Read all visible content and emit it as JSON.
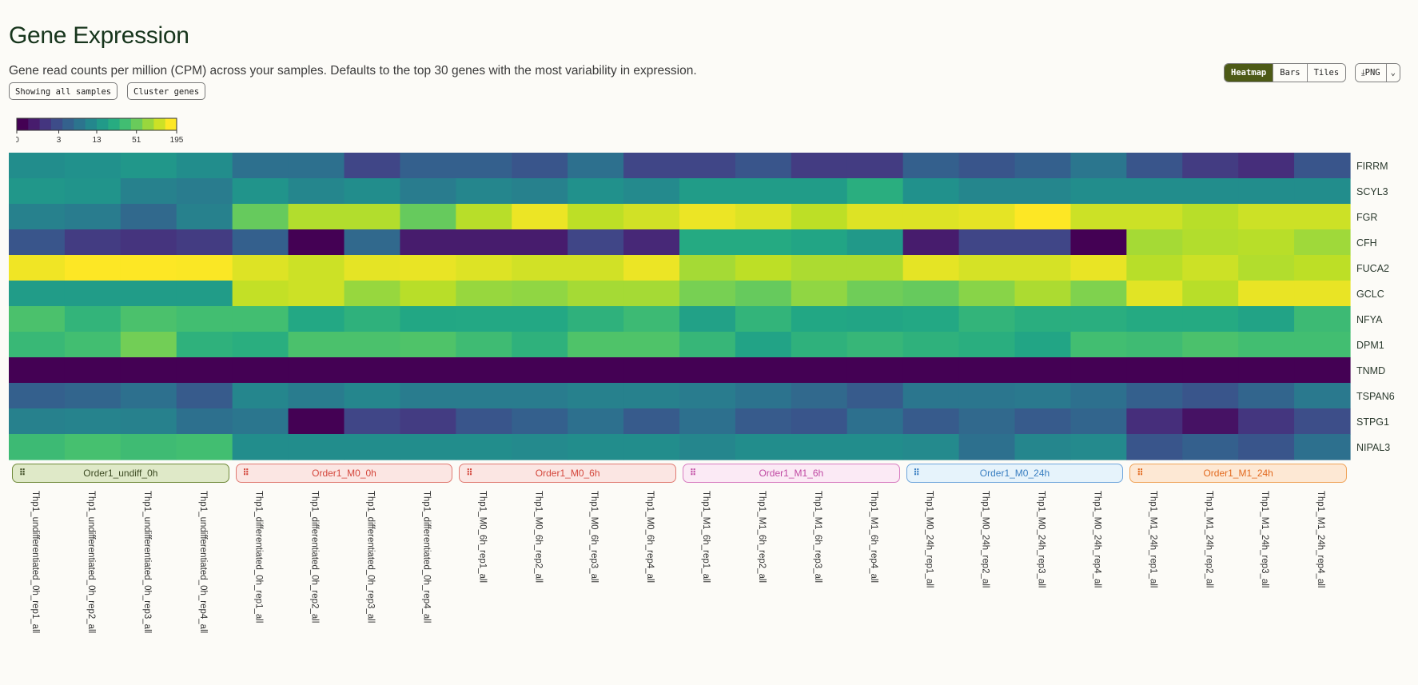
{
  "header": {
    "title": "Gene Expression",
    "description": "Gene read counts per million (CPM) across your samples. Defaults to the top 30 genes with the most variability in expression."
  },
  "controls": {
    "samples_button": "Showing all samples",
    "cluster_button": "Cluster genes",
    "view_modes": [
      {
        "label": "Heatmap",
        "active": true
      },
      {
        "label": "Bars",
        "active": false
      },
      {
        "label": "Tiles",
        "active": false
      }
    ],
    "download": {
      "icon": "download-icon",
      "label": "PNG",
      "menu_icon": "chevron-down-icon"
    }
  },
  "chart_data": {
    "type": "heatmap",
    "title": "Gene Expression",
    "value_label": "CPM",
    "colormap": "viridis",
    "color_scale": {
      "ticks": [
        0,
        3,
        13,
        51,
        195
      ],
      "min": 0,
      "max": 195,
      "scale": "log"
    },
    "genes": [
      "FIRRM",
      "SCYL3",
      "FGR",
      "CFH",
      "FUCA2",
      "GCLC",
      "NFYA",
      "DPM1",
      "TNMD",
      "TSPAN6",
      "STPG1",
      "NIPAL3"
    ],
    "samples": [
      "Thp1_undifferentiated_0h_rep1_all",
      "Thp1_undifferentiated_0h_rep2_all",
      "Thp1_undifferentiated_0h_rep3_all",
      "Thp1_undifferentiated_0h_rep4_all",
      "Thp1_differentiated_0h_rep1_all",
      "Thp1_differentiated_0h_rep2_all",
      "Thp1_differentiated_0h_rep3_all",
      "Thp1_differentiated_0h_rep4_all",
      "Thp1_M0_6h_rep1_all",
      "Thp1_M0_6h_rep2_all",
      "Thp1_M0_6h_rep3_all",
      "Thp1_M0_6h_rep4_all",
      "Thp1_M1_6h_rep1_all",
      "Thp1_M1_6h_rep2_all",
      "Thp1_M1_6h_rep3_all",
      "Thp1_M1_6h_rep4_all",
      "Thp1_M0_24h_rep1_all",
      "Thp1_M0_24h_rep2_all",
      "Thp1_M0_24h_rep3_all",
      "Thp1_M0_24h_rep4_all",
      "Thp1_M1_24h_rep1_all",
      "Thp1_M1_24h_rep2_all",
      "Thp1_M1_24h_rep3_all",
      "Thp1_M1_24h_rep4_all"
    ],
    "groups": [
      {
        "name": "Order1_undiff_0h",
        "count": 4,
        "color": "#6f8a3a",
        "bg": "#dfe9c8",
        "text": "#3c4a22"
      },
      {
        "name": "Order1_M0_0h",
        "count": 4,
        "color": "#e07a72",
        "bg": "#fbe6e3",
        "text": "#d4473c"
      },
      {
        "name": "Order1_M0_6h",
        "count": 4,
        "color": "#e07a72",
        "bg": "#fbe6e3",
        "text": "#d4473c"
      },
      {
        "name": "Order1_M1_6h",
        "count": 4,
        "color": "#d77cc0",
        "bg": "#fbeaf5",
        "text": "#c04aa3"
      },
      {
        "name": "Order1_M0_24h",
        "count": 4,
        "color": "#6fa6dc",
        "bg": "#e6f3fb",
        "text": "#3a7fc1"
      },
      {
        "name": "Order1_M1_24h",
        "count": 4,
        "color": "#efa45a",
        "bg": "#fde8d4",
        "text": "#e26a1f"
      }
    ],
    "values": [
      [
        12,
        13,
        15,
        12,
        6,
        6,
        2,
        4,
        4,
        3,
        6,
        2,
        2,
        3,
        1.5,
        1.5,
        4,
        3,
        4,
        7,
        3,
        1.5,
        1,
        3
      ],
      [
        15,
        14,
        9,
        8,
        14,
        10,
        12,
        8,
        10,
        9,
        13,
        11,
        17,
        17,
        17,
        26,
        13,
        10,
        10,
        12,
        12,
        12,
        12,
        12
      ],
      [
        9,
        8,
        5,
        9,
        55,
        105,
        105,
        55,
        110,
        170,
        115,
        135,
        170,
        150,
        115,
        150,
        150,
        160,
        195,
        130,
        130,
        110,
        130,
        130
      ],
      [
        3,
        1.5,
        1.2,
        1.5,
        4,
        0,
        5,
        0.5,
        0.5,
        0.5,
        2,
        0.8,
        24,
        24,
        21,
        16,
        0.5,
        2,
        2,
        0,
        95,
        105,
        110,
        90
      ],
      [
        175,
        195,
        195,
        190,
        150,
        130,
        160,
        165,
        150,
        135,
        135,
        170,
        95,
        115,
        100,
        100,
        160,
        140,
        140,
        165,
        110,
        130,
        105,
        115
      ],
      [
        17,
        17,
        17,
        17,
        120,
        130,
        85,
        110,
        85,
        80,
        95,
        95,
        65,
        55,
        80,
        60,
        55,
        75,
        100,
        70,
        155,
        110,
        165,
        165
      ],
      [
        42,
        30,
        42,
        38,
        38,
        23,
        28,
        22,
        23,
        23,
        28,
        35,
        19,
        30,
        22,
        21,
        23,
        30,
        26,
        26,
        24,
        24,
        20,
        35
      ],
      [
        33,
        38,
        62,
        28,
        26,
        42,
        42,
        44,
        36,
        28,
        44,
        44,
        32,
        20,
        28,
        32,
        28,
        26,
        21,
        38,
        36,
        42,
        38,
        38
      ],
      [
        0,
        0,
        0,
        0,
        0,
        0,
        0,
        0,
        0,
        0,
        0,
        0,
        0,
        0,
        0,
        0,
        0,
        0,
        0,
        0,
        0,
        0,
        0,
        0
      ],
      [
        4,
        4.5,
        6,
        3.5,
        10,
        8,
        10,
        8,
        8,
        8,
        9,
        9,
        8,
        6.5,
        5,
        3.5,
        7,
        7,
        7.5,
        6,
        4,
        3,
        4.5,
        7.5
      ],
      [
        9,
        9.5,
        9,
        6,
        7,
        0,
        2,
        1.5,
        3,
        4,
        6,
        3.5,
        6,
        3.5,
        3,
        6,
        3.5,
        5,
        3.5,
        4.5,
        1,
        0.3,
        1.3,
        2.5
      ],
      [
        35,
        40,
        36,
        38,
        12,
        12,
        12,
        12,
        12,
        11,
        12,
        12,
        10,
        12,
        12,
        12,
        11,
        6,
        10,
        11,
        3,
        4,
        3,
        6
      ]
    ]
  }
}
